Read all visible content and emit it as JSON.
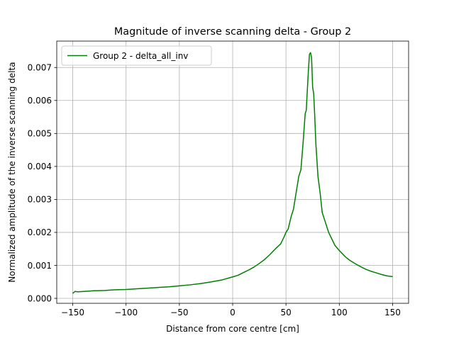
{
  "chart_data": {
    "type": "line",
    "title": "Magnitude of inverse scanning delta - Group 2",
    "xlabel": "Distance from core centre [cm]",
    "ylabel": "Normalized amplitude of the inverse scanning delta",
    "xlim": [
      -165,
      165
    ],
    "ylim": [
      -0.00015,
      0.0078
    ],
    "xticks": [
      -150,
      -100,
      -50,
      0,
      50,
      100,
      150
    ],
    "xtick_labels": [
      "−150",
      "−100",
      "−50",
      "0",
      "50",
      "100",
      "150"
    ],
    "yticks": [
      0.0,
      0.001,
      0.002,
      0.003,
      0.004,
      0.005,
      0.006,
      0.007
    ],
    "ytick_labels": [
      "0.000",
      "0.001",
      "0.002",
      "0.003",
      "0.004",
      "0.005",
      "0.006",
      "0.007"
    ],
    "grid": true,
    "legend_position": "top-left",
    "series": [
      {
        "name": "Group 2 - delta_all_inv",
        "color": "#008000",
        "x": [
          -150,
          -148,
          -145,
          -140,
          -130,
          -120,
          -110,
          -100,
          -90,
          -80,
          -70,
          -60,
          -50,
          -40,
          -30,
          -20,
          -10,
          0,
          5,
          10,
          15,
          20,
          25,
          30,
          35,
          40,
          45,
          48,
          50,
          52,
          55,
          57,
          60,
          62,
          64,
          66,
          68,
          69,
          70,
          71,
          72,
          73,
          74,
          75,
          76,
          77,
          78,
          80,
          82,
          84,
          86,
          88,
          90,
          93,
          96,
          100,
          103,
          106,
          110,
          115,
          120,
          125,
          130,
          135,
          140,
          145,
          150
        ],
        "y": [
          0.00015,
          0.00021,
          0.0002,
          0.00021,
          0.00023,
          0.00024,
          0.00026,
          0.00027,
          0.00029,
          0.00031,
          0.00033,
          0.00035,
          0.00038,
          0.00041,
          0.00045,
          0.0005,
          0.00056,
          0.00065,
          0.0007,
          0.00078,
          0.00086,
          0.00095,
          0.00106,
          0.00118,
          0.00133,
          0.0015,
          0.00165,
          0.00185,
          0.002,
          0.0021,
          0.0025,
          0.0027,
          0.0033,
          0.0037,
          0.0039,
          0.0047,
          0.0056,
          0.0057,
          0.0063,
          0.0069,
          0.0074,
          0.00745,
          0.0073,
          0.0064,
          0.0062,
          0.0055,
          0.0047,
          0.0037,
          0.0032,
          0.0026,
          0.0024,
          0.0022,
          0.002,
          0.0018,
          0.0016,
          0.00145,
          0.00135,
          0.00125,
          0.00115,
          0.00105,
          0.00096,
          0.00088,
          0.00082,
          0.00077,
          0.00072,
          0.00068,
          0.00066
        ]
      }
    ]
  }
}
